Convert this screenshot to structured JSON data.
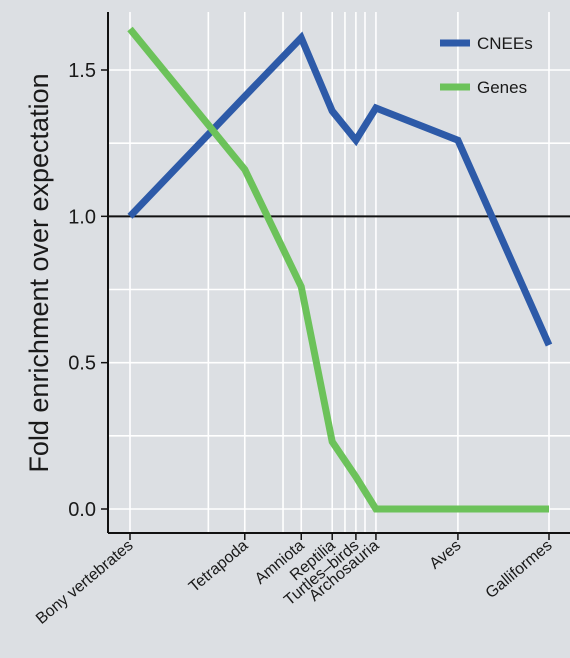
{
  "chart_data": {
    "type": "line",
    "title": "",
    "xlabel": "",
    "ylabel": "Fold enrichment over expectation",
    "categories": [
      "Bony vertebrates",
      "Tetrapoda",
      "Amniota",
      "Reptilia",
      "Turtles–birds",
      "Archosauria",
      "Aves",
      "Galliformes"
    ],
    "x": [
      0,
      3.15,
      4.7,
      5.55,
      6.2,
      6.75,
      9.0,
      11.5
    ],
    "minor_gridlines_x": [
      2.15,
      4.2,
      5.9,
      6.45
    ],
    "y_ticks": [
      0.0,
      0.5,
      1.0,
      1.5
    ],
    "y_tick_labels": [
      "0.0",
      "0.5",
      "1.0",
      "1.5"
    ],
    "ylim": [
      -0.1,
      1.7
    ],
    "reference_line": 1.0,
    "grid": true,
    "legend_position": "top-right",
    "series": [
      {
        "name": "CNEEs",
        "color": "#2d5aa8",
        "points": [
          {
            "x": 0,
            "y": 1.0
          },
          {
            "x": 3.15,
            "y": 1.41
          },
          {
            "x": 4.7,
            "y": 1.61
          },
          {
            "x": 5.55,
            "y": 1.36
          },
          {
            "x": 6.2,
            "y": 1.26
          },
          {
            "x": 6.75,
            "y": 1.37
          },
          {
            "x": 9.0,
            "y": 1.26
          },
          {
            "x": 11.5,
            "y": 0.56
          }
        ]
      },
      {
        "name": "Genes",
        "color": "#6cc25a",
        "points": [
          {
            "x": 0,
            "y": 1.64
          },
          {
            "x": 3.15,
            "y": 1.16
          },
          {
            "x": 4.7,
            "y": 0.76
          },
          {
            "x": 5.55,
            "y": 0.23
          },
          {
            "x": 6.2,
            "y": 0.11
          },
          {
            "x": 6.75,
            "y": 0.0
          },
          {
            "x": 9.0,
            "y": 0.0
          },
          {
            "x": 11.5,
            "y": 0.0
          }
        ]
      }
    ]
  }
}
